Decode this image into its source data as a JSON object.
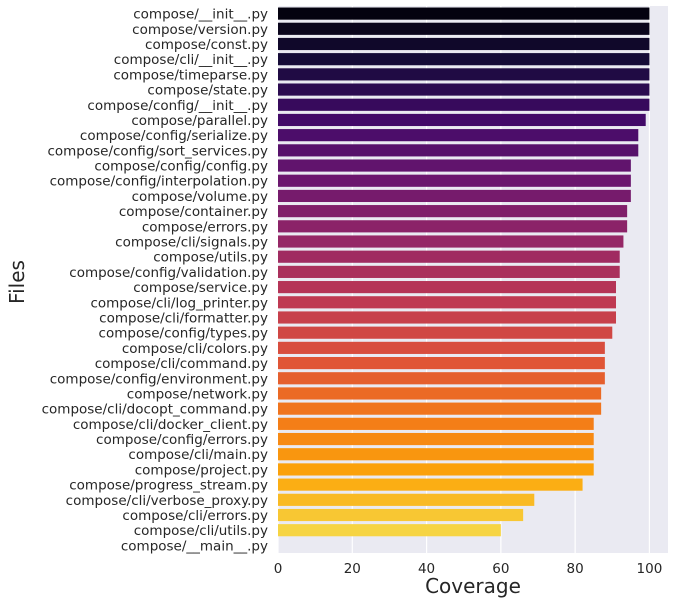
{
  "chart_data": {
    "type": "bar",
    "orientation": "horizontal",
    "xlabel": "Coverage",
    "ylabel": "Files",
    "xlim": [
      0,
      105
    ],
    "xticks": [
      "0",
      "20",
      "40",
      "60",
      "80",
      "100"
    ],
    "grid": true,
    "colormap": "inferno",
    "background": "#eaeaf2",
    "categories": [
      "compose/__init__.py",
      "compose/version.py",
      "compose/const.py",
      "compose/cli/__init__.py",
      "compose/timeparse.py",
      "compose/state.py",
      "compose/config/__init__.py",
      "compose/parallel.py",
      "compose/config/serialize.py",
      "compose/config/sort_services.py",
      "compose/config/config.py",
      "compose/config/interpolation.py",
      "compose/volume.py",
      "compose/container.py",
      "compose/errors.py",
      "compose/cli/signals.py",
      "compose/utils.py",
      "compose/config/validation.py",
      "compose/service.py",
      "compose/cli/log_printer.py",
      "compose/cli/formatter.py",
      "compose/config/types.py",
      "compose/cli/colors.py",
      "compose/cli/command.py",
      "compose/config/environment.py",
      "compose/network.py",
      "compose/cli/docopt_command.py",
      "compose/cli/docker_client.py",
      "compose/config/errors.py",
      "compose/cli/main.py",
      "compose/project.py",
      "compose/progress_stream.py",
      "compose/cli/verbose_proxy.py",
      "compose/cli/errors.py",
      "compose/cli/utils.py",
      "compose/__main__.py"
    ],
    "values": [
      100,
      100,
      100,
      100,
      100,
      100,
      100,
      99,
      97,
      97,
      95,
      95,
      95,
      94,
      94,
      93,
      92,
      92,
      91,
      91,
      91,
      90,
      88,
      88,
      88,
      87,
      87,
      85,
      85,
      85,
      85,
      82,
      69,
      66,
      60,
      0
    ]
  }
}
